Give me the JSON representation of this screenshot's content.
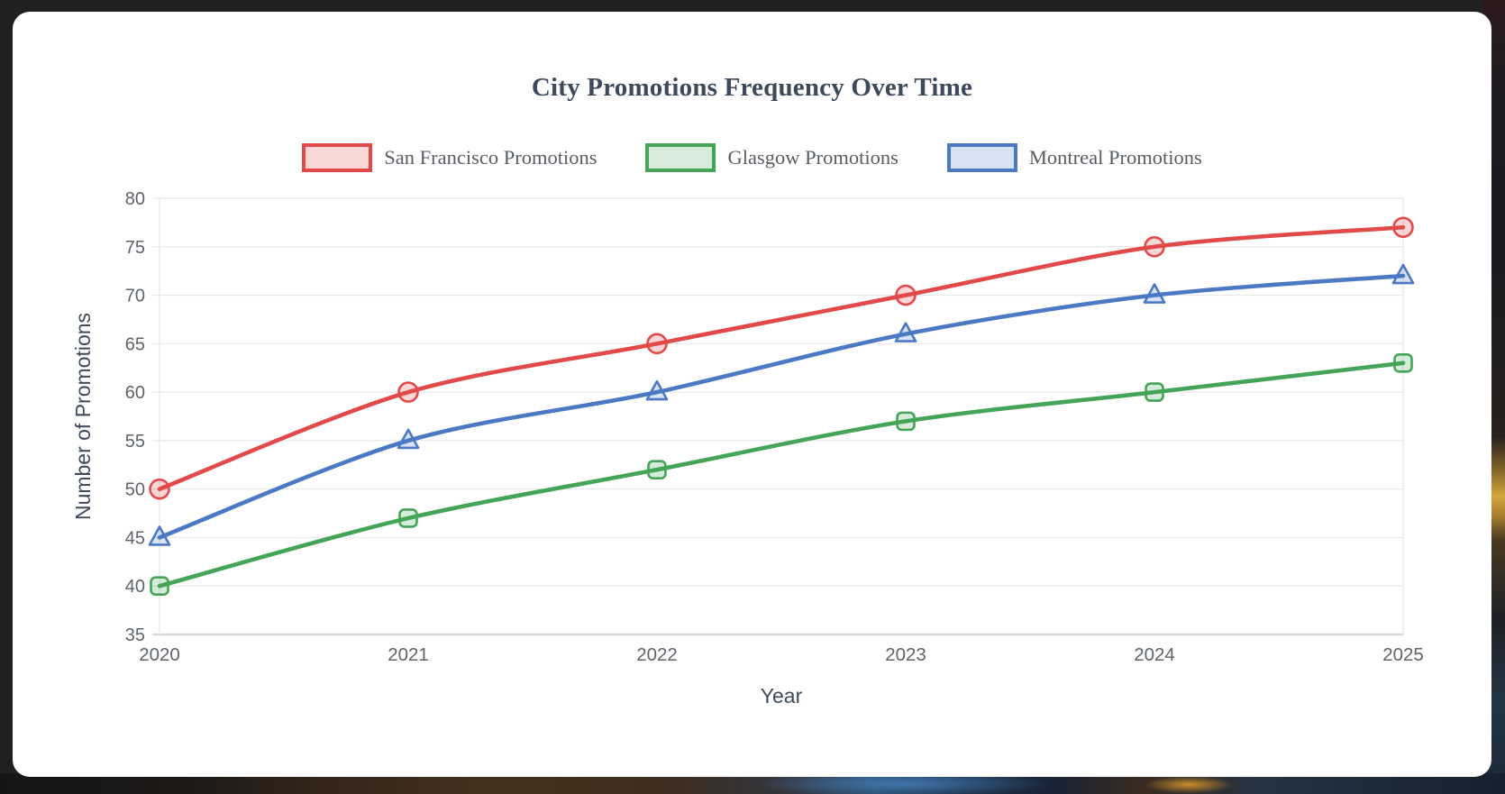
{
  "title": {
    "text": "City Promotions Frequency Over Time",
    "color": "#3c4a5c"
  },
  "colors": {
    "card_bg": "#ffffff",
    "frame_bg": "#202023",
    "grid": "#e7e8ea",
    "axis_line": "#c6c9cc",
    "axis_text": "#5f646b",
    "axis_title": "#3f4b5b"
  },
  "chart_data": {
    "type": "line",
    "x": [
      2020,
      2021,
      2022,
      2023,
      2024,
      2025
    ],
    "xlabel": "Year",
    "ylabel": "Number of Promotions",
    "ylim": [
      35,
      80
    ],
    "ytick_step": 5,
    "grid": true,
    "legend_position": "top",
    "curve": "smooth",
    "series": [
      {
        "name": "San Francisco Promotions",
        "values": [
          50,
          60,
          65,
          70,
          75,
          77
        ],
        "color": "#e24a4a",
        "fill": "rgba(226,74,74,0.22)",
        "marker": "circle"
      },
      {
        "name": "Glasgow Promotions",
        "values": [
          40,
          47,
          52,
          57,
          60,
          63
        ],
        "color": "#44a457",
        "fill": "rgba(68,164,87,0.22)",
        "marker": "square"
      },
      {
        "name": "Montreal Promotions",
        "values": [
          45,
          55,
          60,
          66,
          70,
          72
        ],
        "color": "#4b79c3",
        "fill": "rgba(75,121,195,0.22)",
        "marker": "triangle"
      }
    ]
  }
}
